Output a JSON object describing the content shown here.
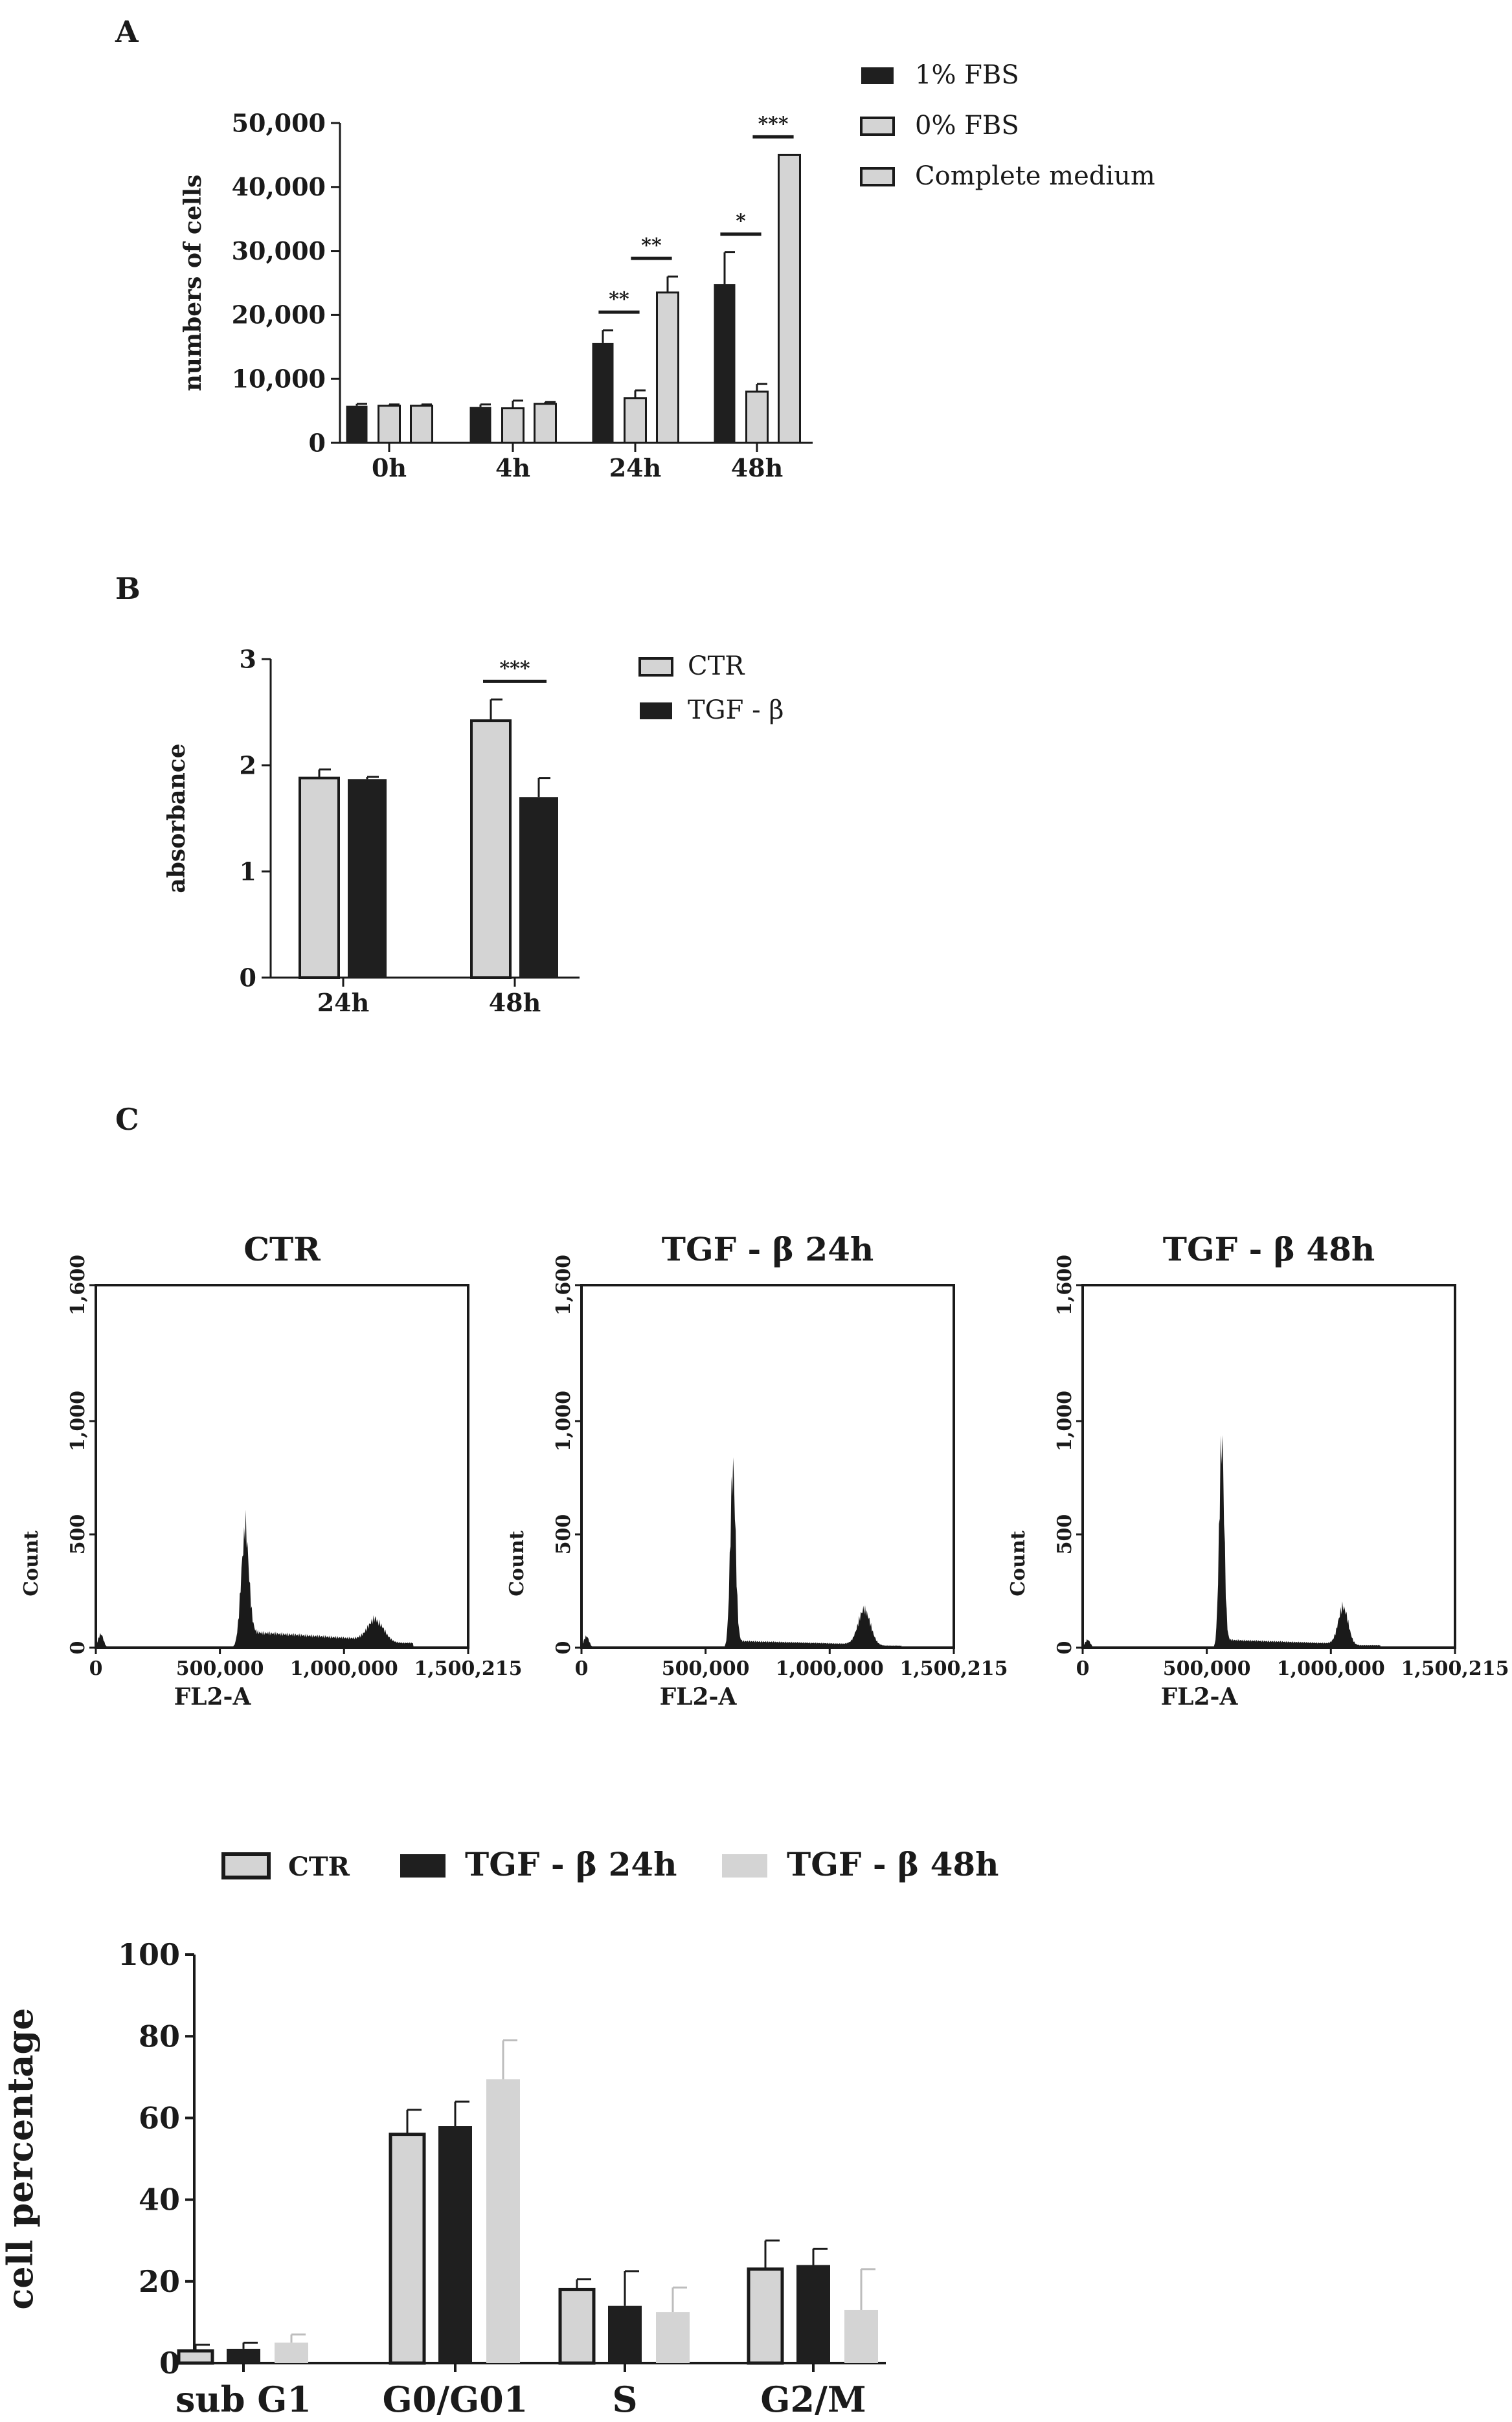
{
  "panels": {
    "a": "A",
    "b": "B",
    "c": "C"
  },
  "chart_data": [
    {
      "id": "A",
      "type": "bar",
      "ylabel": "numbers of cells",
      "categories": [
        "0h",
        "4h",
        "24h",
        "48h"
      ],
      "ylim": [
        0,
        50000
      ],
      "yticks": [
        0,
        10000,
        20000,
        30000,
        40000,
        50000
      ],
      "ytick_labels": [
        "0",
        "10,000",
        "20,000",
        "30,000",
        "40,000",
        "50,000"
      ],
      "series": [
        {
          "name": "1% FBS",
          "color": "#1f1f1f",
          "values": [
            5800,
            5600,
            15600,
            24800
          ],
          "errors": [
            300,
            400,
            2000,
            5000
          ]
        },
        {
          "name": "0% FBS",
          "color": "#d4d4d4",
          "values": [
            5800,
            5400,
            7000,
            8000
          ],
          "errors": [
            200,
            1200,
            1200,
            1200
          ]
        },
        {
          "name": "Complete medium",
          "color": "#d4d4d4",
          "values": [
            5800,
            6100,
            23500,
            45000
          ],
          "errors": [
            200,
            300,
            2500,
            0
          ]
        }
      ],
      "significance": [
        {
          "group": 2,
          "from": 0,
          "to": 1,
          "label": "**"
        },
        {
          "group": 2,
          "from": 1,
          "to": 2,
          "label": "**"
        },
        {
          "group": 3,
          "from": 0,
          "to": 1,
          "label": "*"
        },
        {
          "group": 3,
          "from": 1,
          "to": 2,
          "label": "***"
        }
      ]
    },
    {
      "id": "B",
      "type": "bar",
      "ylabel": "absorbance",
      "categories": [
        "24h",
        "48h"
      ],
      "ylim": [
        0,
        3
      ],
      "yticks": [
        0,
        1,
        2,
        3
      ],
      "ytick_labels": [
        "0",
        "1",
        "2",
        "3"
      ],
      "series": [
        {
          "name": "CTR",
          "color": "#d4d4d4",
          "values": [
            1.88,
            2.42
          ],
          "errors": [
            0.08,
            0.2
          ]
        },
        {
          "name": "TGF - β",
          "color": "#1f1f1f",
          "values": [
            1.87,
            1.7
          ],
          "errors": [
            0.02,
            0.18
          ]
        }
      ],
      "significance": [
        {
          "group": 1,
          "from": 0,
          "to": 1,
          "label": "***"
        }
      ]
    },
    {
      "id": "C-hist",
      "type": "area",
      "xlabel": "FL2-A",
      "ylabel": "Count",
      "xlim": [
        0,
        1500215
      ],
      "ylim": [
        0,
        1600
      ],
      "xticks": [
        0,
        500000,
        1000000,
        1500215
      ],
      "xtick_labels": [
        "0",
        "500,000",
        "1,000,000",
        "1,500,215"
      ],
      "yticks": [
        0,
        500,
        1000,
        1600
      ],
      "ytick_labels": [
        "0",
        "500",
        "1,000",
        "1,600"
      ],
      "histograms": [
        {
          "title": "CTR",
          "g1_pos": 600000,
          "g1_peak": 480,
          "g1_width": 22000,
          "s_level": 70,
          "g2_pos": 1130000,
          "g2_peak": 95,
          "g2_width": 45000,
          "sub_g1": 60
        },
        {
          "title": "TGF - β 24h",
          "g1_pos": 610000,
          "g1_peak": 770,
          "g1_width": 15000,
          "s_level": 30,
          "g2_pos": 1140000,
          "g2_peak": 155,
          "g2_width": 35000,
          "sub_g1": 50
        },
        {
          "title": "TGF - β 48h",
          "g1_pos": 560000,
          "g1_peak": 900,
          "g1_width": 14000,
          "s_level": 35,
          "g2_pos": 1050000,
          "g2_peak": 165,
          "g2_width": 28000,
          "sub_g1": 35
        }
      ]
    },
    {
      "id": "C-bar",
      "type": "bar",
      "ylabel": "cell percentage",
      "categories": [
        "sub G1",
        "G0/G01",
        "S",
        "G2/M"
      ],
      "ylim": [
        0,
        100
      ],
      "yticks": [
        0,
        20,
        40,
        60,
        80,
        100
      ],
      "ytick_labels": [
        "0",
        "20",
        "40",
        "60",
        "80",
        "100"
      ],
      "series": [
        {
          "name": "CTR",
          "color": "#d4d4d4",
          "values": [
            3,
            56,
            18,
            23
          ],
          "errors": [
            1.5,
            6,
            2.5,
            7
          ]
        },
        {
          "name": "TGF - β 24h",
          "color": "#1f1f1f",
          "values": [
            3.5,
            58,
            14,
            24
          ],
          "errors": [
            1.5,
            6,
            8.5,
            4
          ]
        },
        {
          "name": "TGF - β 48h",
          "color": "#d4d4d4",
          "values": [
            5,
            69.5,
            12.5,
            13
          ],
          "errors": [
            2,
            9.5,
            6,
            10
          ]
        }
      ]
    }
  ]
}
